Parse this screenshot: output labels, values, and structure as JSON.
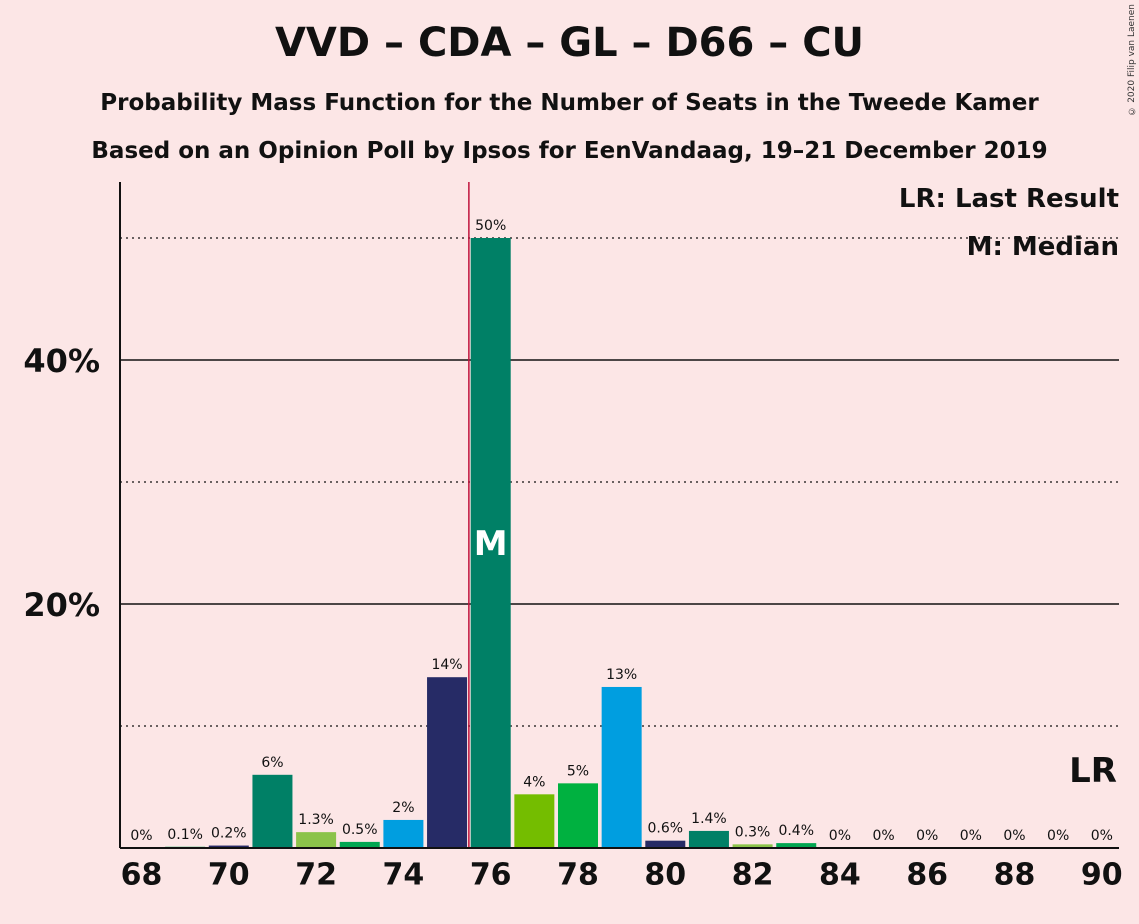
{
  "title": "VVD – CDA – GL – D66 – CU",
  "subtitle1": "Probability Mass Function for the Number of Seats in the Tweede Kamer",
  "subtitle2": "Based on an Opinion Poll by Ipsos for EenVandaag, 19–21 December 2019",
  "copyright": "© 2020 Filip van Laenen",
  "legend": {
    "last_result": "LR: Last Result",
    "median": "M: Median"
  },
  "chart_data": {
    "type": "bar",
    "x": [
      68,
      69,
      70,
      71,
      72,
      73,
      74,
      75,
      76,
      77,
      78,
      79,
      80,
      81,
      82,
      83,
      84,
      85,
      86,
      87,
      88,
      89,
      90
    ],
    "values": [
      0,
      0.1,
      0.2,
      6,
      1.3,
      0.5,
      2.3,
      14,
      50,
      4.4,
      5.3,
      13.2,
      0.6,
      1.4,
      0.3,
      0.4,
      0,
      0,
      0,
      0,
      0,
      0,
      0
    ],
    "labels": [
      "0%",
      "0.1%",
      "0.2%",
      "6%",
      "1.3%",
      "0.5%",
      "2%",
      "14%",
      "50%",
      "4%",
      "5%",
      "13%",
      "0.6%",
      "1.4%",
      "0.3%",
      "0.4%",
      "0%",
      "0%",
      "0%",
      "0%",
      "0%",
      "0%",
      "0%"
    ],
    "colors": [
      "#8bc34a",
      "#00a651",
      "#262b66",
      "#008066",
      "#8bc34a",
      "#00a651",
      "#009ee0",
      "#262b66",
      "#008066",
      "#74bd00",
      "#00b140",
      "#009ee0",
      "#262b66",
      "#008066",
      "#8bc34a",
      "#00a651",
      "#009ee0",
      "#262b66",
      "#008066",
      "#8bc34a",
      "#00a651",
      "#009ee0",
      "#262b66"
    ],
    "x_tick_labels": [
      "68",
      "70",
      "72",
      "74",
      "76",
      "78",
      "80",
      "82",
      "84",
      "86",
      "88",
      "90"
    ],
    "y_tick_labels": [
      "20%",
      "40%"
    ],
    "ylim": [
      0,
      54
    ],
    "gridlines_solid": [
      20,
      40
    ],
    "gridlines_dotted": [
      10,
      30,
      50
    ],
    "median_seat": 76,
    "median_marker": "M",
    "last_result_seat": 75.5,
    "last_result_marker": "LR",
    "last_result_line_color": "#c0143c"
  }
}
